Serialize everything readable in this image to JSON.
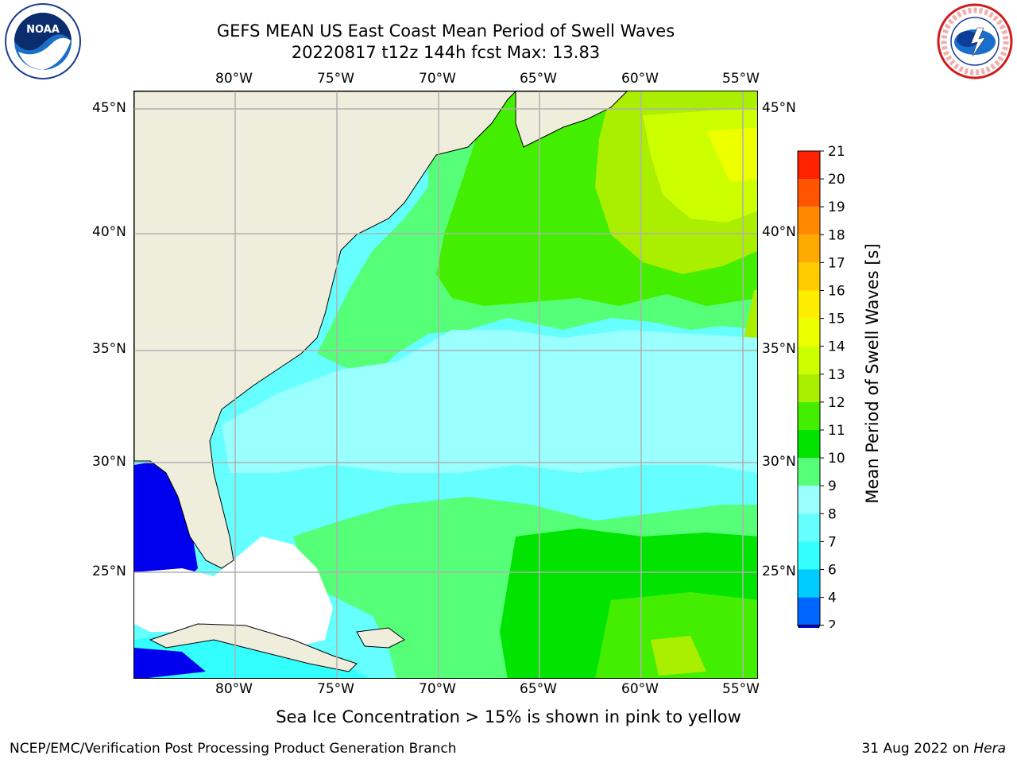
{
  "header": {
    "title_line1": "GEFS MEAN US East Coast Mean Period of Swell Waves",
    "title_line2": "20220817 t12z 144h fcst   Max: 13.83"
  },
  "map": {
    "lon_labels": [
      "80°W",
      "75°W",
      "70°W",
      "65°W",
      "60°W",
      "55°W"
    ],
    "lat_labels": [
      "45°N",
      "40°N",
      "35°N",
      "30°N",
      "25°N"
    ],
    "land_color": "#efeddc",
    "grid_color": "#b0b0b0"
  },
  "colorbar": {
    "label": "Mean Period of Swell Waves [s]",
    "ticks": [
      "2",
      "4",
      "6",
      "7",
      "8",
      "9",
      "10",
      "11",
      "12",
      "13",
      "14",
      "15",
      "16",
      "17",
      "18",
      "19",
      "20",
      "21"
    ],
    "colors": [
      "#0066ff",
      "#00ccff",
      "#33ffff",
      "#66ffff",
      "#99ffff",
      "#55ff77",
      "#00e400",
      "#44ee00",
      "#aaee00",
      "#ccff00",
      "#eeff00",
      "#ffee00",
      "#ffcc00",
      "#ffaa00",
      "#ff8800",
      "#ff5500",
      "#ff2200"
    ],
    "under_color": "#0000ee"
  },
  "footer": {
    "note": "Sea Ice Concentration > 15% is shown in pink to yellow",
    "credit": "NCEP/EMC/Verification Post Processing Product Generation Branch",
    "date_prefix": "31 Aug 2022 on ",
    "machine": "Hera"
  },
  "logos": {
    "noaa_text": "NOAA",
    "nws_text": "NATIONAL WEATHER SERVICE"
  }
}
